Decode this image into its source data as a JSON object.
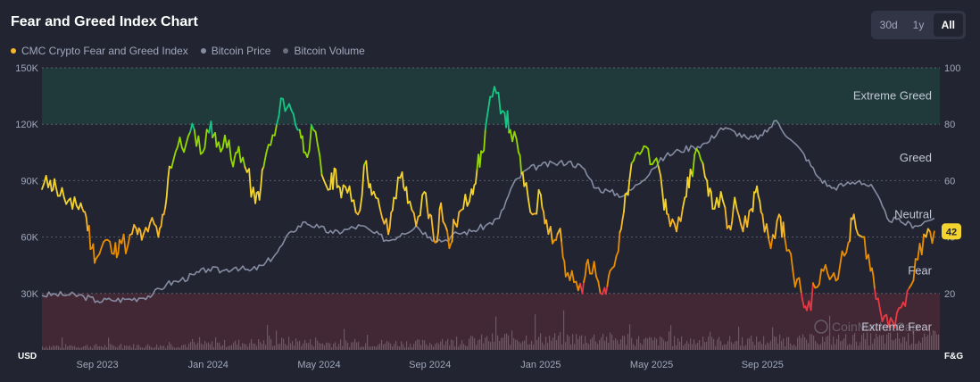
{
  "header": {
    "title": "Fear and Greed Index Chart"
  },
  "range": {
    "options": [
      "30d",
      "1y",
      "All"
    ],
    "active": "All"
  },
  "legend": [
    {
      "label": "CMC Crypto Fear and Greed Index",
      "color": "#f6b829"
    },
    {
      "label": "Bitcoin Price",
      "color": "#858ca2"
    },
    {
      "label": "Bitcoin Volume",
      "color": "#6b6f7d"
    }
  ],
  "colors": {
    "extreme_greed": "#16c784",
    "greed": "#93d900",
    "neutral": "#f3d42f",
    "fear": "#ea8c00",
    "extreme_fear": "#ea3943",
    "price": "#858ca2",
    "volume": "#6b6f7d",
    "badge": "#f3d42f"
  },
  "chart_data": {
    "type": "line",
    "left_axis": {
      "unit": "USD",
      "ticks": [
        "30K",
        "60K",
        "90K",
        "120K",
        "150K"
      ],
      "values": [
        30000,
        60000,
        90000,
        120000,
        150000
      ],
      "range": [
        0,
        150000
      ]
    },
    "right_axis": {
      "unit": "F&G",
      "ticks": [
        "20",
        "40",
        "60",
        "80",
        "100"
      ],
      "values": [
        20,
        40,
        60,
        80,
        100
      ],
      "range": [
        0,
        100
      ]
    },
    "x_ticks": [
      {
        "label": "Sep 2023",
        "month": 2
      },
      {
        "label": "Jan 2024",
        "month": 6
      },
      {
        "label": "May 2024",
        "month": 10
      },
      {
        "label": "Sep 2024",
        "month": 14
      },
      {
        "label": "Jan 2025",
        "month": 18
      },
      {
        "label": "May 2025",
        "month": 22
      },
      {
        "label": "Sep 2025",
        "month": 26
      }
    ],
    "x_range_months": [
      0,
      32.4
    ],
    "zones": [
      {
        "label": "Extreme Greed",
        "value": 90
      },
      {
        "label": "Greed",
        "value": 68
      },
      {
        "label": "Neutral",
        "value": 48
      },
      {
        "label": "Fear",
        "value": 28
      },
      {
        "label": "Extreme Fear",
        "value": 8
      }
    ],
    "zone_bands": {
      "extreme_greed_from": 80,
      "extreme_fear_below": 20
    },
    "current_value": "42",
    "series": [
      {
        "name": "CMC Crypto Fear and Greed Index",
        "points": [
          [
            0,
            57
          ],
          [
            0.3,
            60
          ],
          [
            0.5,
            58
          ],
          [
            0.8,
            54
          ],
          [
            1.1,
            50
          ],
          [
            1.4,
            52
          ],
          [
            1.6,
            47
          ],
          [
            1.8,
            36
          ],
          [
            2.0,
            33
          ],
          [
            2.3,
            39
          ],
          [
            2.6,
            34
          ],
          [
            2.8,
            39
          ],
          [
            3.1,
            37
          ],
          [
            3.4,
            43
          ],
          [
            3.6,
            39
          ],
          [
            3.9,
            45
          ],
          [
            4.2,
            40
          ],
          [
            4.4,
            48
          ],
          [
            4.6,
            65
          ],
          [
            4.9,
            72
          ],
          [
            5.2,
            73
          ],
          [
            5.5,
            78
          ],
          [
            5.8,
            70
          ],
          [
            6.1,
            81
          ],
          [
            6.3,
            72
          ],
          [
            6.6,
            76
          ],
          [
            6.9,
            65
          ],
          [
            7.1,
            72
          ],
          [
            7.4,
            63
          ],
          [
            7.7,
            52
          ],
          [
            7.9,
            58
          ],
          [
            8.1,
            70
          ],
          [
            8.4,
            76
          ],
          [
            8.7,
            89
          ],
          [
            9.0,
            85
          ],
          [
            9.3,
            78
          ],
          [
            9.5,
            70
          ],
          [
            9.8,
            78
          ],
          [
            10.1,
            62
          ],
          [
            10.4,
            57
          ],
          [
            10.6,
            64
          ],
          [
            10.8,
            54
          ],
          [
            11.1,
            58
          ],
          [
            11.4,
            48
          ],
          [
            11.7,
            67
          ],
          [
            11.9,
            55
          ],
          [
            12.2,
            50
          ],
          [
            12.5,
            41
          ],
          [
            12.7,
            54
          ],
          [
            13.0,
            63
          ],
          [
            13.2,
            52
          ],
          [
            13.5,
            44
          ],
          [
            13.8,
            56
          ],
          [
            14.0,
            48
          ],
          [
            14.2,
            38
          ],
          [
            14.4,
            52
          ],
          [
            14.7,
            36
          ],
          [
            14.9,
            45
          ],
          [
            15.2,
            50
          ],
          [
            15.5,
            57
          ],
          [
            15.7,
            64
          ],
          [
            15.9,
            70
          ],
          [
            16.1,
            85
          ],
          [
            16.4,
            91
          ],
          [
            16.7,
            84
          ],
          [
            16.9,
            78
          ],
          [
            17.2,
            70
          ],
          [
            17.4,
            58
          ],
          [
            17.7,
            48
          ],
          [
            18.0,
            55
          ],
          [
            18.2,
            46
          ],
          [
            18.5,
            39
          ],
          [
            18.7,
            43
          ],
          [
            18.9,
            26
          ],
          [
            19.2,
            24
          ],
          [
            19.5,
            20
          ],
          [
            19.7,
            32
          ],
          [
            20.0,
            26
          ],
          [
            20.3,
            22
          ],
          [
            20.5,
            28
          ],
          [
            20.8,
            35
          ],
          [
            21.0,
            49
          ],
          [
            21.2,
            60
          ],
          [
            21.5,
            70
          ],
          [
            21.8,
            72
          ],
          [
            22.1,
            67
          ],
          [
            22.4,
            55
          ],
          [
            22.6,
            48
          ],
          [
            22.9,
            42
          ],
          [
            23.2,
            54
          ],
          [
            23.4,
            64
          ],
          [
            23.7,
            70
          ],
          [
            24.0,
            60
          ],
          [
            24.2,
            50
          ],
          [
            24.5,
            56
          ],
          [
            24.8,
            44
          ],
          [
            25.0,
            54
          ],
          [
            25.3,
            42
          ],
          [
            25.6,
            50
          ],
          [
            25.8,
            58
          ],
          [
            26.0,
            48
          ],
          [
            26.3,
            36
          ],
          [
            26.6,
            48
          ],
          [
            26.8,
            40
          ],
          [
            27.1,
            28
          ],
          [
            27.4,
            20
          ],
          [
            27.6,
            14
          ],
          [
            27.9,
            22
          ],
          [
            28.2,
            28
          ],
          [
            28.5,
            26
          ],
          [
            28.8,
            30
          ],
          [
            29.1,
            38
          ],
          [
            29.3,
            48
          ],
          [
            29.6,
            40
          ],
          [
            29.9,
            28
          ],
          [
            30.1,
            18
          ],
          [
            30.4,
            12
          ],
          [
            30.7,
            10
          ],
          [
            31.0,
            15
          ],
          [
            31.3,
            22
          ],
          [
            31.6,
            32
          ],
          [
            31.9,
            40
          ],
          [
            32.2,
            42
          ]
        ]
      },
      {
        "name": "Bitcoin Price",
        "points": [
          [
            0,
            29000
          ],
          [
            0.5,
            29500
          ],
          [
            1.0,
            29200
          ],
          [
            1.5,
            28500
          ],
          [
            2.0,
            26000
          ],
          [
            2.5,
            26500
          ],
          [
            3.0,
            26800
          ],
          [
            3.5,
            27500
          ],
          [
            4.0,
            29500
          ],
          [
            4.5,
            35000
          ],
          [
            5.0,
            37000
          ],
          [
            5.5,
            40000
          ],
          [
            6.0,
            43000
          ],
          [
            6.5,
            42000
          ],
          [
            7.0,
            44000
          ],
          [
            7.5,
            42000
          ],
          [
            8.0,
            45000
          ],
          [
            8.5,
            52000
          ],
          [
            9.0,
            63000
          ],
          [
            9.5,
            68000
          ],
          [
            10.0,
            65000
          ],
          [
            10.5,
            62000
          ],
          [
            11.0,
            64000
          ],
          [
            11.5,
            66000
          ],
          [
            12.0,
            62000
          ],
          [
            12.5,
            58000
          ],
          [
            13.0,
            62000
          ],
          [
            13.5,
            66000
          ],
          [
            14.0,
            60000
          ],
          [
            14.5,
            58000
          ],
          [
            15.0,
            62000
          ],
          [
            15.5,
            63000
          ],
          [
            16.0,
            66000
          ],
          [
            16.5,
            70000
          ],
          [
            17.0,
            88000
          ],
          [
            17.5,
            96000
          ],
          [
            18.0,
            98000
          ],
          [
            18.5,
            99000
          ],
          [
            19.0,
            100000
          ],
          [
            19.5,
            97000
          ],
          [
            20.0,
            86000
          ],
          [
            20.5,
            84000
          ],
          [
            21.0,
            82000
          ],
          [
            21.5,
            88000
          ],
          [
            22.0,
            96000
          ],
          [
            22.5,
            103000
          ],
          [
            23.0,
            106000
          ],
          [
            23.5,
            108000
          ],
          [
            24.0,
            110000
          ],
          [
            24.5,
            118000
          ],
          [
            25.0,
            116000
          ],
          [
            25.5,
            112000
          ],
          [
            26.0,
            114000
          ],
          [
            26.5,
            122000
          ],
          [
            27.0,
            112000
          ],
          [
            27.5,
            104000
          ],
          [
            28.0,
            92000
          ],
          [
            28.5,
            86000
          ],
          [
            29.0,
            88000
          ],
          [
            29.5,
            90000
          ],
          [
            30.0,
            86000
          ],
          [
            30.5,
            70000
          ],
          [
            31.0,
            68000
          ],
          [
            31.5,
            66000
          ],
          [
            32.2,
            70000
          ]
        ]
      },
      {
        "name": "Bitcoin Volume",
        "level_points": [
          [
            0,
            0.16
          ],
          [
            4,
            0.18
          ],
          [
            6,
            0.26
          ],
          [
            8,
            0.34
          ],
          [
            9,
            0.38
          ],
          [
            10,
            0.3
          ],
          [
            14,
            0.3
          ],
          [
            16,
            0.45
          ],
          [
            17,
            0.55
          ],
          [
            18,
            0.5
          ],
          [
            20,
            0.52
          ],
          [
            22,
            0.4
          ],
          [
            24,
            0.38
          ],
          [
            26,
            0.42
          ],
          [
            28,
            0.45
          ],
          [
            30,
            0.5
          ],
          [
            32.2,
            0.55
          ]
        ]
      }
    ]
  },
  "watermark": "CoinMarketCap"
}
